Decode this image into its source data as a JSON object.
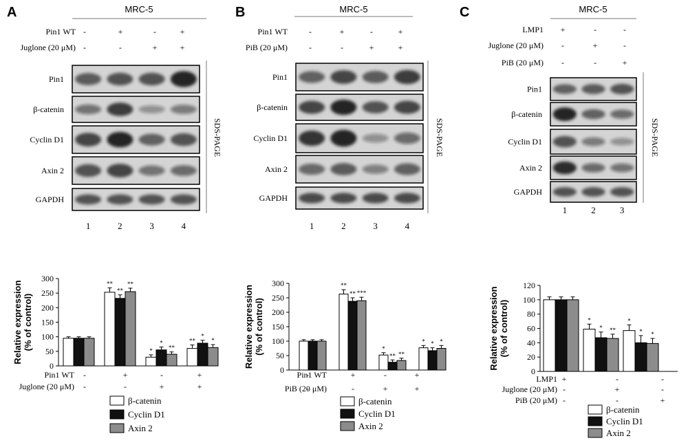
{
  "colors": {
    "blot_bg": "#d4d4d4",
    "band": "#1a1a1a",
    "bar_white": "#ffffff",
    "bar_black": "#111111",
    "bar_gray": "#8c8c8c"
  },
  "legend_entries": [
    "β-catenin",
    "Cyclin D1",
    "Axin 2"
  ],
  "panels": [
    {
      "letter": "A",
      "cell_line": "MRC-5",
      "gel_label": "SDS-PAGE",
      "header_rows": [
        {
          "label": "Pin1 WT",
          "signs": [
            "-",
            "+",
            "-",
            "+"
          ]
        },
        {
          "label": "Juglone (20 μM)",
          "signs": [
            "-",
            "-",
            "+",
            "+"
          ]
        }
      ],
      "blots": [
        {
          "label": "Pin1",
          "intensities": [
            0.55,
            0.6,
            0.6,
            0.95
          ]
        },
        {
          "label": "β-catenin",
          "intensities": [
            0.35,
            0.75,
            0.15,
            0.3
          ]
        },
        {
          "label": "Cyclin D1",
          "intensities": [
            0.7,
            0.9,
            0.5,
            0.6
          ]
        },
        {
          "label": "Axin 2",
          "intensities": [
            0.6,
            0.7,
            0.35,
            0.4
          ]
        },
        {
          "label": "GAPDH",
          "intensities": [
            0.6,
            0.6,
            0.6,
            0.6
          ]
        }
      ],
      "lanes": [
        "1",
        "2",
        "3",
        "4"
      ],
      "chart_data": {
        "type": "bar",
        "ylabel": "Relative expression (% of control)",
        "ylim": [
          0,
          300
        ],
        "yticks": [
          0,
          50,
          100,
          150,
          200,
          250,
          300
        ],
        "categories": [
          "1",
          "2",
          "3",
          "4"
        ],
        "series": [
          {
            "name": "β-catenin",
            "values": [
              95,
              253,
              30,
              60
            ],
            "errors": [
              5,
              15,
              8,
              12
            ]
          },
          {
            "name": "Cyclin D1",
            "values": [
              95,
              232,
              55,
              78
            ],
            "errors": [
              5,
              12,
              10,
              10
            ]
          },
          {
            "name": "Axin 2",
            "values": [
              95,
              255,
              40,
              63
            ],
            "errors": [
              5,
              12,
              8,
              10
            ]
          }
        ],
        "significance": [
          [
            "",
            "",
            ""
          ],
          [
            "**",
            "**",
            "**"
          ],
          [
            "*",
            "*",
            "**"
          ],
          [
            "**",
            "*",
            "*"
          ]
        ],
        "condition_rows": [
          {
            "label": "Pin1 WT",
            "signs": [
              "-",
              "+",
              "-",
              "+"
            ]
          },
          {
            "label": "Juglone (20 μM)",
            "signs": [
              "-",
              "-",
              "+",
              "+"
            ]
          }
        ]
      }
    },
    {
      "letter": "B",
      "cell_line": "MRC-5",
      "gel_label": "SDS-PAGE",
      "header_rows": [
        {
          "label": "Pin1 WT",
          "signs": [
            "-",
            "+",
            "-",
            "+"
          ]
        },
        {
          "label": "PiB (20 μM)",
          "signs": [
            "-",
            "-",
            "+",
            "+"
          ]
        }
      ],
      "blots": [
        {
          "label": "Pin1",
          "intensities": [
            0.5,
            0.7,
            0.55,
            0.75
          ]
        },
        {
          "label": "β-catenin",
          "intensities": [
            0.7,
            0.95,
            0.6,
            0.7
          ]
        },
        {
          "label": "Cyclin D1",
          "intensities": [
            0.8,
            0.95,
            0.15,
            0.4
          ]
        },
        {
          "label": "Axin 2",
          "intensities": [
            0.45,
            0.55,
            0.25,
            0.5
          ]
        },
        {
          "label": "GAPDH",
          "intensities": [
            0.65,
            0.65,
            0.65,
            0.65
          ]
        }
      ],
      "lanes": [
        "1",
        "2",
        "3",
        "4"
      ],
      "chart_data": {
        "type": "bar",
        "ylabel": "Relative expression (% of control)",
        "ylim": [
          0,
          300
        ],
        "yticks": [
          0,
          50,
          100,
          150,
          200,
          250,
          300
        ],
        "categories": [
          "1",
          "2",
          "3",
          "4"
        ],
        "series": [
          {
            "name": "β-catenin",
            "values": [
              100,
              263,
              52,
              77
            ],
            "errors": [
              5,
              15,
              8,
              8
            ]
          },
          {
            "name": "Cyclin D1",
            "values": [
              100,
              238,
              27,
              67
            ],
            "errors": [
              5,
              12,
              8,
              10
            ]
          },
          {
            "name": "Axin 2",
            "values": [
              100,
              240,
              33,
              75
            ],
            "errors": [
              5,
              12,
              8,
              10
            ]
          }
        ],
        "significance": [
          [
            "",
            "",
            ""
          ],
          [
            "**",
            "**",
            "***"
          ],
          [
            "*",
            "**",
            "**"
          ],
          [
            "*",
            "*",
            "*"
          ]
        ],
        "condition_rows": [
          {
            "label": "Pin1 WT",
            "signs": [
              "-",
              "+",
              "-",
              "+"
            ]
          },
          {
            "label": "PiB (20 μM)",
            "signs": [
              "-",
              "-",
              "+",
              "+"
            ]
          }
        ]
      }
    },
    {
      "letter": "C",
      "cell_line": "MRC-5",
      "gel_label": "SDS-PAGE",
      "header_rows": [
        {
          "label": "LMP1",
          "signs": [
            "+",
            "-",
            "-"
          ]
        },
        {
          "label": "Juglone (20 μM)",
          "signs": [
            "-",
            "+",
            "-"
          ]
        },
        {
          "label": "PiB (20 μM)",
          "signs": [
            "-",
            "-",
            "+"
          ]
        }
      ],
      "blots": [
        {
          "label": "Pin1",
          "intensities": [
            0.5,
            0.55,
            0.6
          ]
        },
        {
          "label": "β-catenin",
          "intensities": [
            0.95,
            0.5,
            0.4
          ]
        },
        {
          "label": "Cyclin D1",
          "intensities": [
            0.6,
            0.3,
            0.15
          ]
        },
        {
          "label": "Axin 2",
          "intensities": [
            0.85,
            0.4,
            0.35
          ]
        },
        {
          "label": "GAPDH",
          "intensities": [
            0.6,
            0.6,
            0.6
          ]
        }
      ],
      "lanes": [
        "1",
        "2",
        "3"
      ],
      "chart_data": {
        "type": "bar",
        "ylabel": "Relative expression (% of control)",
        "ylim": [
          0,
          120
        ],
        "yticks": [
          0,
          20,
          40,
          60,
          80,
          100,
          120
        ],
        "categories": [
          "1",
          "2",
          "3"
        ],
        "series": [
          {
            "name": "β-catenin",
            "values": [
              100,
              59,
              57
            ],
            "errors": [
              4,
              7,
              8
            ]
          },
          {
            "name": "Cyclin D1",
            "values": [
              100,
              47,
              40
            ],
            "errors": [
              4,
              8,
              10
            ]
          },
          {
            "name": "Axin 2",
            "values": [
              100,
              46,
              39
            ],
            "errors": [
              4,
              6,
              7
            ]
          }
        ],
        "significance": [
          [
            "",
            "",
            ""
          ],
          [
            "*",
            "*",
            "**"
          ],
          [
            "*",
            "*",
            "*"
          ]
        ],
        "condition_rows": [
          {
            "label": "LMP1",
            "signs": [
              "+",
              "-",
              "-"
            ]
          },
          {
            "label": "Juglone (20 μM)",
            "signs": [
              "-",
              "+",
              "-"
            ]
          },
          {
            "label": "PiB (20 μM)",
            "signs": [
              "-",
              "-",
              "+"
            ]
          }
        ]
      }
    }
  ]
}
